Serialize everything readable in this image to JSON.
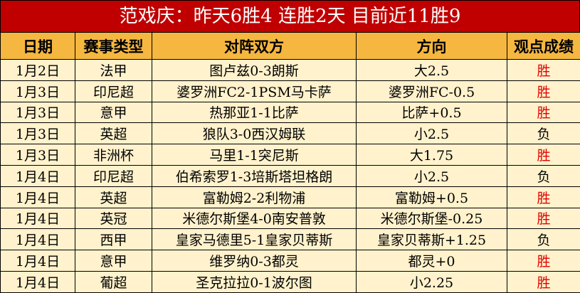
{
  "header": {
    "title": "范戏庆：昨天6胜4 连胜2天 目前近11胜9"
  },
  "table": {
    "columns": [
      "日期",
      "赛事类型",
      "对阵双方",
      "方向",
      "观点成绩"
    ],
    "rows": [
      {
        "date": "1月2日",
        "league": "法甲",
        "match": "图卢兹0-3朗斯",
        "direction": "大2.5",
        "result": "胜",
        "result_color": "#e00000"
      },
      {
        "date": "1月3日",
        "league": "印尼超",
        "match": "婆罗洲FC2-1PSM马卡萨",
        "direction": "婆罗洲FC-0.5",
        "result": "胜",
        "result_color": "#e00000"
      },
      {
        "date": "1月3日",
        "league": "意甲",
        "match": "热那亚1-1比萨",
        "direction": "比萨+0.5",
        "result": "胜",
        "result_color": "#e00000"
      },
      {
        "date": "1月3日",
        "league": "英超",
        "match": "狼队3-0西汉姆联",
        "direction": "小2.5",
        "result": "负",
        "result_color": "#000000"
      },
      {
        "date": "1月3日",
        "league": "非洲杯",
        "match": "马里1-1突尼斯",
        "direction": "大1.75",
        "result": "胜",
        "result_color": "#e00000"
      },
      {
        "date": "1月4日",
        "league": "印尼超",
        "match": "伯希索罗1-3培斯塔坦格朗",
        "direction": "小2.5",
        "result": "负",
        "result_color": "#000000"
      },
      {
        "date": "1月4日",
        "league": "英超",
        "match": "富勒姆2-2利物浦",
        "direction": "富勒姆+0.5",
        "result": "胜",
        "result_color": "#e00000"
      },
      {
        "date": "1月4日",
        "league": "英冠",
        "match": "米德尔斯堡4-0南安普敦",
        "direction": "米德尔斯堡-0.25",
        "result": "胜",
        "result_color": "#e00000"
      },
      {
        "date": "1月4日",
        "league": "西甲",
        "match": "皇家马德里5-1皇家贝蒂斯",
        "direction": "皇家贝蒂斯+1.25",
        "result": "负",
        "result_color": "#000000"
      },
      {
        "date": "1月4日",
        "league": "意甲",
        "match": "维罗纳0-3都灵",
        "direction": "都灵+0",
        "result": "胜",
        "result_color": "#e00000"
      },
      {
        "date": "1月4日",
        "league": "葡超",
        "match": "圣克拉拉0-1波尔图",
        "direction": "小2.25",
        "result": "胜",
        "result_color": "#e00000"
      }
    ]
  }
}
